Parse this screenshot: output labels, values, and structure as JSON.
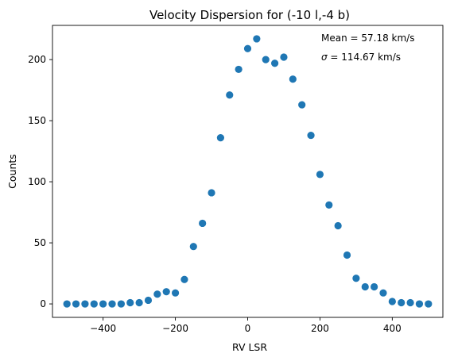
{
  "chart_data": {
    "type": "scatter",
    "title": "Velocity Dispersion for (-10 l,-4 b)",
    "xlabel": "RV LSR",
    "ylabel": "Counts",
    "xlim": [
      -540,
      540
    ],
    "ylim": [
      -11,
      228
    ],
    "xticks": [
      -400,
      -200,
      0,
      200,
      400
    ],
    "xtick_labels": [
      "−400",
      "−200",
      "0",
      "200",
      "400"
    ],
    "yticks": [
      0,
      50,
      100,
      150,
      200
    ],
    "ytick_labels": [
      "0",
      "50",
      "100",
      "150",
      "200"
    ],
    "grid": false,
    "marker_color": "#1f77b4",
    "annotations": {
      "mean": "Mean = 57.18 km/s",
      "sigma_symbol": "σ",
      "sigma_rest": " = 114.67 km/s"
    },
    "series": [
      {
        "x": [
          -500,
          -475,
          -450,
          -425,
          -400,
          -375,
          -350,
          -325,
          -300,
          -275,
          -250,
          -225,
          -200,
          -175,
          -150,
          -125,
          -100,
          -75,
          -50,
          -25,
          0,
          25,
          50,
          75,
          100,
          125,
          150,
          175,
          200,
          225,
          250,
          275,
          300,
          325,
          350,
          375,
          400,
          425,
          450,
          475,
          500
        ],
        "y": [
          0,
          0,
          0,
          0,
          0,
          0,
          0,
          1,
          1,
          3,
          8,
          10,
          9,
          20,
          47,
          66,
          91,
          136,
          171,
          192,
          209,
          217,
          200,
          197,
          202,
          184,
          163,
          138,
          106,
          81,
          64,
          40,
          21,
          14,
          14,
          9,
          2,
          1,
          1,
          0,
          0
        ]
      }
    ]
  }
}
